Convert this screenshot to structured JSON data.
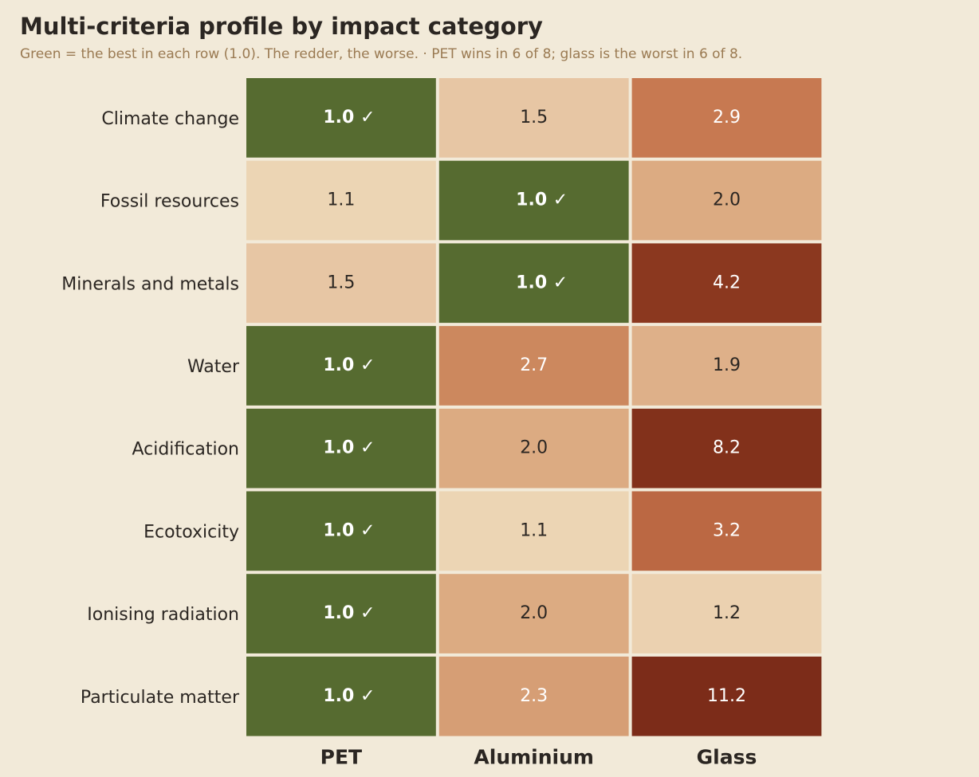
{
  "header": {
    "title": "Multi-criteria profile by impact category",
    "subtitle": "Green = the best in each row (1.0). The redder, the worse.  ·  PET wins in 6 of 8; glass is the worst in 6 of 8."
  },
  "chart_data": {
    "type": "heatmap",
    "title": "Multi-criteria profile by impact category",
    "subtitle": "Green = the best in each row (1.0). The redder, the worse.  ·  PET wins in 6 of 8; glass is the worst in 6 of 8.",
    "columns": [
      "PET",
      "Aluminium",
      "Glass"
    ],
    "rows": [
      "Climate change",
      "Fossil resources",
      "Minerals and metals",
      "Water",
      "Acidification",
      "Ecotoxicity",
      "Ionising radiation",
      "Particulate matter"
    ],
    "values": [
      [
        1.0,
        1.5,
        2.9
      ],
      [
        1.1,
        1.0,
        2.0
      ],
      [
        1.5,
        1.0,
        4.2
      ],
      [
        1.0,
        2.7,
        1.9
      ],
      [
        1.0,
        2.0,
        8.2
      ],
      [
        1.0,
        1.1,
        3.2
      ],
      [
        1.0,
        2.0,
        1.2
      ],
      [
        1.0,
        2.3,
        11.2
      ]
    ],
    "best_marker": "✓",
    "colors": {
      "best": "#566b30",
      "background": "#f2ead9",
      "text_dark": "#2b2622",
      "text_light": "#ffffff"
    }
  }
}
